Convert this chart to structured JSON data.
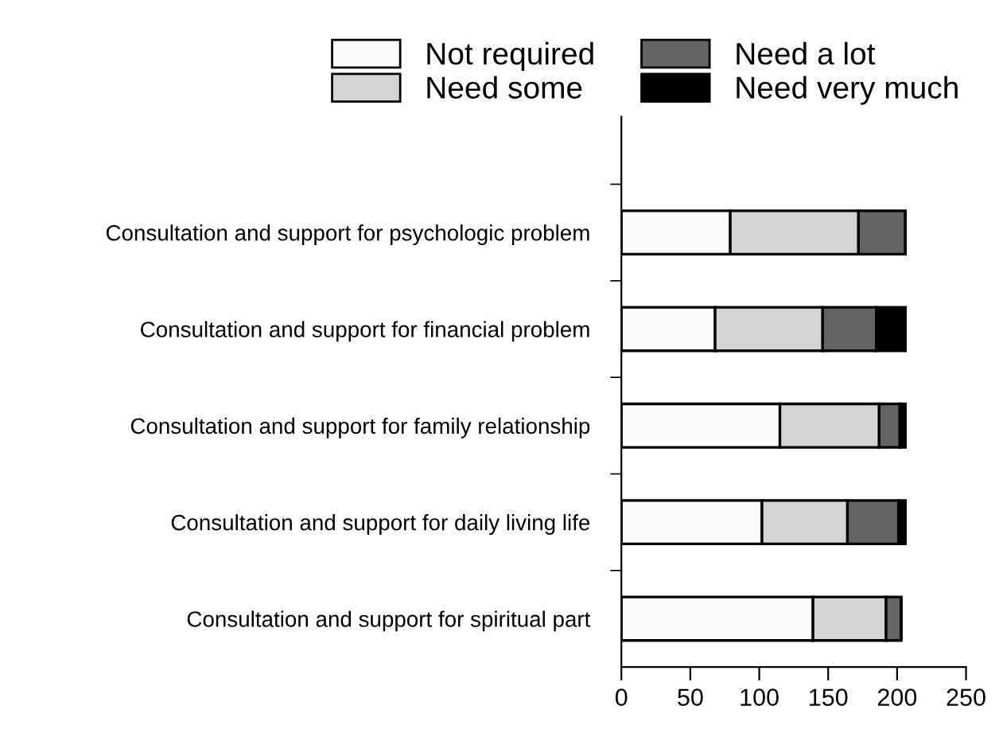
{
  "chart_data": {
    "type": "bar",
    "orientation": "horizontal",
    "stacked": true,
    "categories": [
      "Consultation and support for psychologic problem",
      "Consultation and support for financial problem",
      "Consultation and support for family relationship",
      "Consultation and support for daily living life",
      "Consultation and support for spiritual part"
    ],
    "series": [
      {
        "name": "Not required",
        "color": "#fcfcfc",
        "values": [
          79,
          68,
          115,
          102,
          139
        ]
      },
      {
        "name": "Need some",
        "color": "#d4d4d4",
        "values": [
          93,
          78,
          72,
          62,
          53
        ]
      },
      {
        "name": "Need a lot",
        "color": "#646464",
        "values": [
          34,
          39,
          15,
          37,
          11
        ]
      },
      {
        "name": "Need very much",
        "color": "#000000",
        "values": [
          0,
          21,
          4,
          5,
          0
        ]
      }
    ],
    "xlim": [
      0,
      250
    ],
    "xticks": [
      0,
      50,
      100,
      150,
      200,
      250
    ],
    "grid": false,
    "legend": "top left"
  }
}
